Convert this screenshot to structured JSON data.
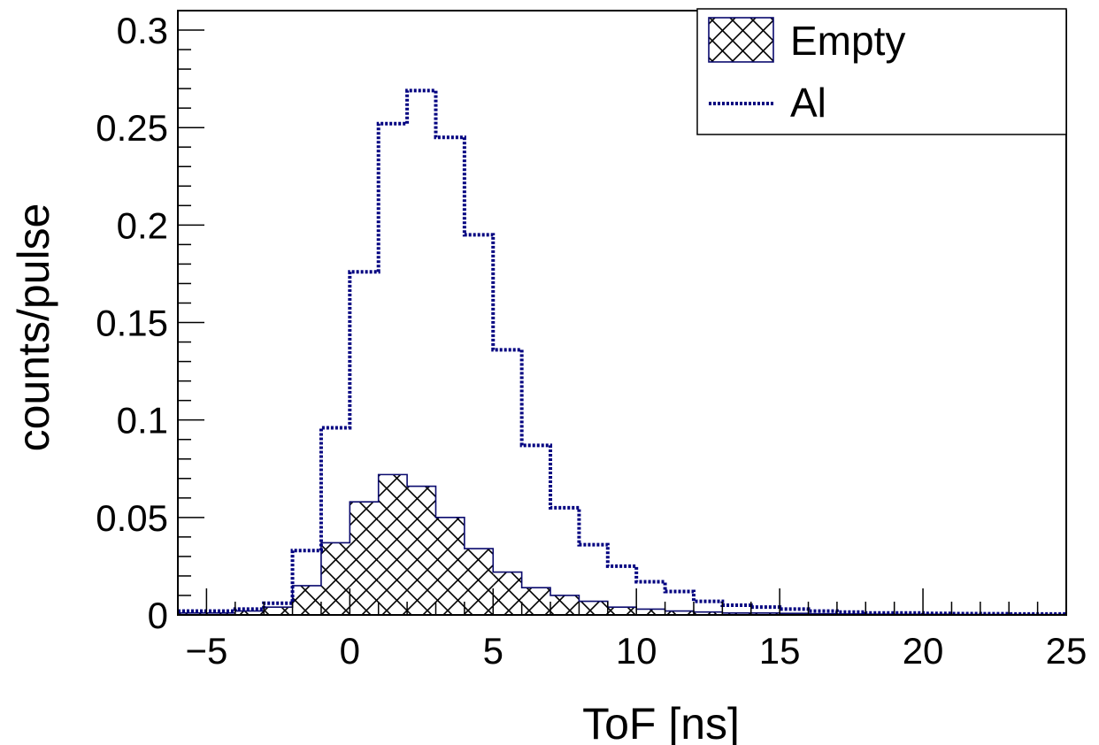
{
  "chart_data": {
    "type": "histogram",
    "xlabel": "ToF [ns]",
    "ylabel": "counts/pulse",
    "xlim": [
      -6,
      25
    ],
    "ylim": [
      0,
      0.31
    ],
    "x_ticks": [
      -5,
      0,
      5,
      10,
      15,
      20,
      25
    ],
    "y_ticks": [
      0,
      0.05,
      0.1,
      0.15,
      0.2,
      0.25,
      0.3
    ],
    "x_tick_labels": [
      "−5",
      "0",
      "5",
      "10",
      "15",
      "20",
      "25"
    ],
    "y_tick_labels": [
      "0",
      "0.05",
      "0.1",
      "0.15",
      "0.2",
      "0.25",
      "0.3"
    ],
    "bin_edges": [
      -6,
      -5,
      -4,
      -3,
      -2,
      -1,
      0,
      1,
      2,
      3,
      4,
      5,
      6,
      7,
      8,
      9,
      10,
      11,
      12,
      13,
      14,
      15,
      16,
      17,
      18,
      19,
      20,
      21,
      22,
      23,
      24,
      25
    ],
    "legend_position": "top-right",
    "series": [
      {
        "name": "Empty",
        "style": "hatched",
        "color": "#0a0a6e",
        "values": [
          0.001,
          0.001,
          0.002,
          0.004,
          0.015,
          0.037,
          0.058,
          0.072,
          0.066,
          0.05,
          0.034,
          0.022,
          0.014,
          0.01,
          0.007,
          0.004,
          0.003,
          0.002,
          0.0015,
          0.001,
          0.001,
          0.0008,
          0.0006,
          0.0005,
          0.0004,
          0.0003,
          0.0003,
          0.0002,
          0.0002,
          0.0002,
          0.0002
        ]
      },
      {
        "name": "Al",
        "style": "dotted",
        "color": "#000080",
        "values": [
          0.002,
          0.002,
          0.003,
          0.006,
          0.033,
          0.096,
          0.176,
          0.252,
          0.269,
          0.245,
          0.195,
          0.136,
          0.087,
          0.055,
          0.036,
          0.025,
          0.017,
          0.012,
          0.007,
          0.005,
          0.004,
          0.003,
          0.002,
          0.0015,
          0.001,
          0.001,
          0.0008,
          0.0007,
          0.0006,
          0.0005,
          0.0005
        ]
      }
    ]
  }
}
